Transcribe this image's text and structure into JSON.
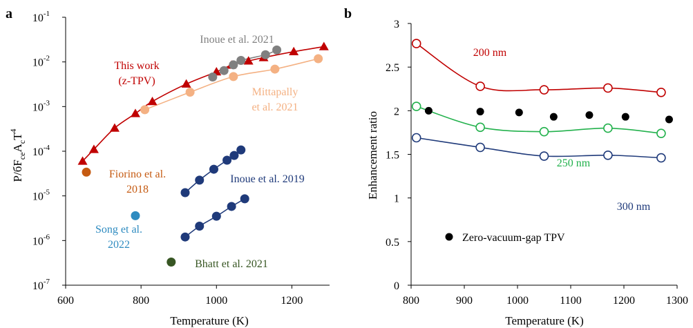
{
  "chart_data": [
    {
      "panel": "a",
      "type": "scatter",
      "xlabel": "Temperature (K)",
      "ylabel": "P/бF_ce A_c T^4",
      "ylabel_parts": [
        "P/бF",
        "ce",
        "A",
        "c",
        "T",
        "4"
      ],
      "xlim": [
        600,
        1300
      ],
      "ylim": [
        1e-07,
        0.1
      ],
      "yscale": "log",
      "xticks": [
        "600",
        "800",
        "1000",
        "1200"
      ],
      "yticks": [
        {
          "base": "10",
          "exp": "-1"
        },
        {
          "base": "10",
          "exp": "-2"
        },
        {
          "base": "10",
          "exp": "-3"
        },
        {
          "base": "10",
          "exp": "-4"
        },
        {
          "base": "10",
          "exp": "-5"
        },
        {
          "base": "10",
          "exp": "-6"
        },
        {
          "base": "10",
          "exp": "-7"
        }
      ],
      "series": [
        {
          "name": "This work (z-TPV)",
          "color": "#c00000",
          "marker": "triangle",
          "fit_line": true,
          "x": [
            645,
            675,
            730,
            785,
            830,
            920,
            1000,
            1040,
            1085,
            1125,
            1205,
            1285
          ],
          "y": [
            6e-05,
            0.00011,
            0.00033,
            0.0007,
            0.0013,
            0.0032,
            0.006,
            0.0085,
            0.0105,
            0.0125,
            0.017,
            0.022
          ]
        },
        {
          "name": "Inoue et al. 2021",
          "color": "#808080",
          "marker": "circle",
          "fit_line": true,
          "x": [
            990,
            1020,
            1045,
            1065,
            1130,
            1160
          ],
          "y": [
            0.0046,
            0.0064,
            0.0086,
            0.0108,
            0.0145,
            0.0185
          ]
        },
        {
          "name": "Mittapally et al. 2021",
          "color": "#f4b183",
          "marker": "circle",
          "fit_line": true,
          "x": [
            810,
            930,
            1045,
            1155,
            1270
          ],
          "y": [
            0.00085,
            0.0021,
            0.0047,
            0.0069,
            0.0118
          ]
        },
        {
          "name": "Fiorino et al. 2018",
          "color": "#c55a11",
          "marker": "circle",
          "fit_line": false,
          "x": [
            655
          ],
          "y": [
            3.4e-05
          ]
        },
        {
          "name": "Inoue et al. 2019",
          "color": "#1f3a7a",
          "marker": "circle",
          "fit_line": true,
          "x": [
            917,
            955,
            993,
            1028,
            1047,
            1065
          ],
          "y": [
            1.18e-05,
            2.25e-05,
            3.95e-05,
            6.3e-05,
            8.05e-05,
            0.000107
          ]
        },
        {
          "name": "Inoue et al. 2019",
          "color": "#1f3a7a",
          "marker": "circle",
          "fit_line": true,
          "x": [
            917,
            955,
            1000,
            1040,
            1075
          ],
          "y": [
            1.2e-06,
            2.1e-06,
            3.5e-06,
            5.8e-06,
            8.6e-06
          ]
        },
        {
          "name": "Song et al. 2022",
          "color": "#2e8bc0",
          "marker": "circle",
          "fit_line": false,
          "x": [
            785
          ],
          "y": [
            3.6e-06
          ]
        },
        {
          "name": "Bhatt et al. 2021",
          "color": "#375623",
          "marker": "circle",
          "fit_line": false,
          "x": [
            880
          ],
          "y": [
            3.3e-07
          ]
        }
      ],
      "annotations": [
        {
          "lines": [
            "This work",
            "(z-TPV)"
          ],
          "color": "#c00000"
        },
        {
          "lines": [
            "Inoue et al. 2021"
          ],
          "color": "#808080"
        },
        {
          "lines": [
            "Mittapally",
            "et al. 2021"
          ],
          "color": "#f4b183"
        },
        {
          "lines": [
            "Fiorino et al.",
            "2018"
          ],
          "color": "#c55a11"
        },
        {
          "lines": [
            "Inoue et al. 2019"
          ],
          "color": "#1f3a7a"
        },
        {
          "lines": [
            "Song et al.",
            "2022"
          ],
          "color": "#2e8bc0"
        },
        {
          "lines": [
            "Bhatt et al. 2021"
          ],
          "color": "#375623"
        }
      ]
    },
    {
      "panel": "b",
      "type": "scatter",
      "xlabel": "Temperature (K)",
      "ylabel": "Enhancement ratio",
      "xlim": [
        800,
        1300
      ],
      "ylim": [
        0,
        3
      ],
      "xticks": [
        "800",
        "900",
        "1000",
        "1100",
        "1200",
        "1300"
      ],
      "yticks": [
        "0",
        "0.5",
        "1",
        "1.5",
        "2",
        "2.5",
        "3"
      ],
      "series": [
        {
          "name": "200 nm",
          "color": "#c00000",
          "marker": "open-circle",
          "fit_line": true,
          "x": [
            810,
            930,
            1050,
            1170,
            1270
          ],
          "y": [
            2.77,
            2.28,
            2.24,
            2.26,
            2.21
          ]
        },
        {
          "name": "250 nm",
          "color": "#22b14c",
          "marker": "open-circle",
          "fit_line": true,
          "x": [
            810,
            930,
            1050,
            1170,
            1270
          ],
          "y": [
            2.05,
            1.81,
            1.76,
            1.8,
            1.74
          ]
        },
        {
          "name": "300 nm",
          "color": "#1f3a7a",
          "marker": "open-circle",
          "fit_line": true,
          "x": [
            810,
            930,
            1050,
            1170,
            1270
          ],
          "y": [
            1.69,
            1.58,
            1.48,
            1.49,
            1.46
          ]
        },
        {
          "name": "Zero-vacuum-gap TPV",
          "color": "#000000",
          "marker": "circle",
          "fit_line": false,
          "x": [
            833,
            930,
            1003,
            1068,
            1135,
            1203,
            1285
          ],
          "y": [
            2.0,
            1.99,
            1.98,
            1.93,
            1.95,
            1.93,
            1.9
          ]
        }
      ],
      "annotations": [
        {
          "lines": [
            "200 nm"
          ],
          "color": "#c00000"
        },
        {
          "lines": [
            "250 nm"
          ],
          "color": "#22b14c"
        },
        {
          "lines": [
            "300 nm"
          ],
          "color": "#1f3a7a"
        }
      ],
      "legend": {
        "label": "Zero-vacuum-gap TPV",
        "placement": "bottom-left"
      }
    }
  ]
}
